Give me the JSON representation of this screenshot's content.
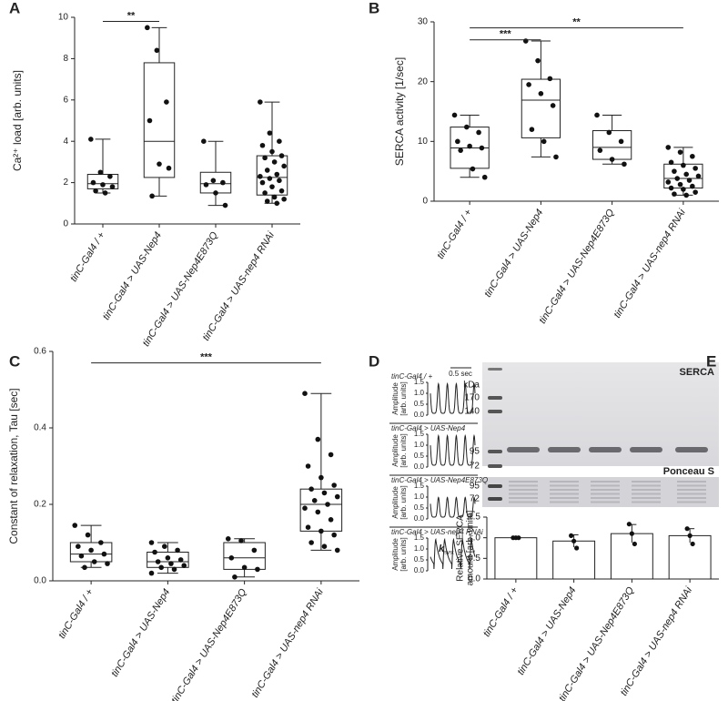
{
  "chart_data": [
    {
      "type": "box",
      "panel": "A",
      "ylabel": "Ca²⁺ load [arb. units]",
      "categories": [
        "tinC-Gal4 / +",
        "tinC-Gal4 > UAS-Nep4",
        "tinC-Gal4 > UAS-Nep4E873Q",
        "tinC-Gal4 > UAS-nep4 RNAi"
      ],
      "ylim": [
        0,
        10
      ],
      "yticks": [
        0,
        2,
        4,
        6,
        8,
        10
      ],
      "boxes": [
        {
          "min": 1.5,
          "q1": 1.7,
          "median": 1.95,
          "q3": 2.4,
          "max": 4.1
        },
        {
          "min": 1.35,
          "q1": 2.25,
          "median": 4.0,
          "q3": 7.8,
          "max": 9.5
        },
        {
          "min": 0.9,
          "q1": 1.5,
          "median": 1.95,
          "q3": 2.5,
          "max": 4.0
        },
        {
          "min": 1.0,
          "q1": 1.4,
          "median": 2.25,
          "q3": 3.3,
          "max": 5.9
        }
      ],
      "points": [
        [
          4.1,
          2.5,
          2.3,
          2.0,
          1.9,
          1.8,
          1.6,
          1.5
        ],
        [
          9.5,
          8.4,
          5.9,
          5.0,
          2.9,
          2.7,
          1.35
        ],
        [
          4.0,
          2.1,
          2.0,
          1.9,
          1.5,
          0.9
        ],
        [
          5.9,
          4.4,
          4.0,
          3.8,
          3.5,
          3.3,
          3.2,
          3.0,
          2.8,
          2.6,
          2.4,
          2.3,
          2.2,
          2.1,
          2.0,
          1.8,
          1.6,
          1.5,
          1.3,
          1.2,
          1.1,
          1.0
        ]
      ],
      "significance": [
        {
          "from": 0,
          "to": 1,
          "y": 9.8,
          "label": "**"
        }
      ]
    },
    {
      "type": "box",
      "panel": "B",
      "ylabel": "SERCA activity [1/sec]",
      "categories": [
        "tinC-Gal4 / +",
        "tinC-Gal4 > UAS-Nep4",
        "tinC-Gal4 > UAS-Nep4E873Q",
        "tinC-Gal4 > UAS-nep4 RNAi"
      ],
      "ylim": [
        0,
        30
      ],
      "yticks": [
        0,
        10,
        20,
        30
      ],
      "boxes": [
        {
          "min": 4.0,
          "q1": 5.5,
          "median": 8.9,
          "q3": 12.4,
          "max": 14.4
        },
        {
          "min": 7.4,
          "q1": 10.6,
          "median": 16.9,
          "q3": 20.4,
          "max": 26.8
        },
        {
          "min": 6.2,
          "q1": 7.0,
          "median": 9.0,
          "q3": 11.8,
          "max": 14.4
        },
        {
          "min": 1.0,
          "q1": 2.2,
          "median": 3.8,
          "q3": 6.2,
          "max": 9.0
        }
      ],
      "points": [
        [
          14.4,
          12.4,
          11.5,
          10.0,
          9.2,
          8.9,
          8.5,
          5.4,
          4.0
        ],
        [
          26.8,
          23.5,
          20.5,
          19.5,
          18.0,
          16.0,
          12.0,
          10.0,
          7.4
        ],
        [
          14.4,
          11.5,
          10.0,
          8.5,
          7.0,
          6.2
        ],
        [
          9.0,
          8.2,
          7.5,
          6.5,
          6.0,
          5.5,
          5.0,
          4.5,
          4.2,
          3.8,
          3.5,
          3.2,
          2.8,
          2.5,
          2.2,
          2.0,
          1.5,
          1.2,
          1.0
        ]
      ],
      "significance": [
        {
          "from": 0,
          "to": 1,
          "y": 27,
          "label": "***"
        },
        {
          "from": 0,
          "to": 3,
          "y": 29,
          "label": "**"
        }
      ]
    },
    {
      "type": "box",
      "panel": "C",
      "ylabel": "Constant of relaxation, Tau [sec]",
      "categories": [
        "tinC-Gal4 / +",
        "tinC-Gal4 > UAS-Nep4",
        "tinC-Gal4 > UAS-Nep4E873Q",
        "tinC-Gal4 > UAS-nep4 RNAi"
      ],
      "ylim": [
        0,
        0.6
      ],
      "yticks": [
        {
          "value": 0,
          "label": "0.0"
        },
        0.2,
        0.4,
        0.6
      ],
      "boxes": [
        {
          "min": 0.035,
          "q1": 0.05,
          "median": 0.07,
          "q3": 0.1,
          "max": 0.145
        },
        {
          "min": 0.02,
          "q1": 0.035,
          "median": 0.05,
          "q3": 0.075,
          "max": 0.1
        },
        {
          "min": 0.01,
          "q1": 0.03,
          "median": 0.06,
          "q3": 0.1,
          "max": 0.11
        },
        {
          "min": 0.08,
          "q1": 0.13,
          "median": 0.2,
          "q3": 0.24,
          "max": 0.49
        }
      ],
      "points": [
        [
          0.145,
          0.12,
          0.1,
          0.09,
          0.08,
          0.07,
          0.065,
          0.05,
          0.045,
          0.035
        ],
        [
          0.1,
          0.09,
          0.08,
          0.075,
          0.06,
          0.055,
          0.05,
          0.045,
          0.04,
          0.035,
          0.03,
          0.02
        ],
        [
          0.11,
          0.105,
          0.08,
          0.06,
          0.035,
          0.03,
          0.01
        ],
        [
          0.49,
          0.37,
          0.33,
          0.3,
          0.27,
          0.25,
          0.24,
          0.23,
          0.22,
          0.21,
          0.2,
          0.19,
          0.18,
          0.16,
          0.14,
          0.13,
          0.12,
          0.1,
          0.09,
          0.08
        ]
      ],
      "significance": [
        {
          "from": 0,
          "to": 3,
          "y": 0.57,
          "label": "***"
        }
      ]
    },
    {
      "type": "trace",
      "panel": "D",
      "ylabel": [
        "Amplitude",
        "[arb. units]"
      ],
      "scale": "0.5 sec",
      "titles": [
        "tinC-Gal4 / +",
        "tinC-Gal4 > UAS-Nep4",
        "tinC-Gal4 > UAS-Nep4E873Q",
        "tinC-Gal4 > UAS-nep4 RNAi"
      ],
      "ylim": [
        0,
        1.5
      ],
      "yticks": [
        {
          "value": 0,
          "label": "0.0"
        },
        0.5,
        {
          "value": 1,
          "label": "1.0"
        },
        1.5
      ],
      "annotation": [
        "k",
        "syst"
      ]
    },
    {
      "type": "bar",
      "panel": "E",
      "ylabel": [
        "Relative SERCA",
        "amount [arb. units]"
      ],
      "blot": {
        "top_label": "SERCA",
        "unit": "kDa",
        "markers": [
          "170",
          "140",
          "95",
          "72"
        ],
        "bottom_label": "Ponceau S",
        "bottom_markers": [
          "95",
          "72"
        ]
      },
      "categories": [
        "tinC-Gal4 / +",
        "tinC-Gal4 > UAS-Nep4",
        "tinC-Gal4 > UAS-Nep4E873Q",
        "tinC-Gal4 > UAS-nep4 RNAi"
      ],
      "values": [
        1.0,
        0.92,
        1.1,
        1.05
      ],
      "errors": [
        0.01,
        0.15,
        0.22,
        0.17
      ],
      "points": [
        [
          1.0,
          1.0,
          1.0
        ],
        [
          1.05,
          0.92,
          0.75
        ],
        [
          1.33,
          1.1,
          0.85
        ],
        [
          1.22,
          1.05,
          0.85
        ]
      ],
      "color": "#ffffff",
      "ylim": [
        0,
        1.5
      ],
      "yticks": [
        {
          "value": 0,
          "label": "0.0"
        },
        0.5,
        {
          "value": 1,
          "label": "1.0"
        },
        1.5
      ]
    }
  ]
}
